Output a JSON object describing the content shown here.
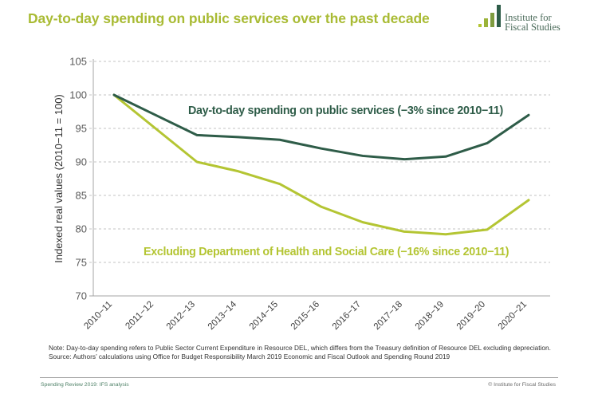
{
  "header": {
    "title": "Day-to-day spending on public services over the past decade",
    "logo_line1": "Institute for",
    "logo_line2": "Fiscal Studies"
  },
  "colors": {
    "title": "#a9bb34",
    "series_total": "#2e5c48",
    "series_excl": "#b4c533",
    "grid": "#b0b0b0",
    "axis": "#a6a6a6",
    "tick_text": "#595959",
    "logo_bars": [
      "#b4c533",
      "#9bb33a",
      "#7e9b3e",
      "#2e5c48"
    ]
  },
  "chart_data": {
    "type": "line",
    "title": "Day-to-day spending on public services over the past decade",
    "xlabel": "",
    "ylabel": "Indexed real values (2010−11 = 100)",
    "ylim": [
      70,
      105
    ],
    "yticks": [
      70,
      75,
      80,
      85,
      90,
      95,
      100,
      105
    ],
    "grid": true,
    "categories": [
      "2010−11",
      "2011−12",
      "2012−13",
      "2013−14",
      "2014−15",
      "2015−16",
      "2016−17",
      "2017−18",
      "2018−19",
      "2019−20",
      "2020−21"
    ],
    "series": [
      {
        "name": "Day-to-day spending on public services (−3% since 2010−11)",
        "key": "total",
        "values": [
          100,
          97.0,
          94.0,
          93.7,
          93.3,
          92.0,
          90.9,
          90.4,
          90.8,
          92.8,
          97.0
        ]
      },
      {
        "name": "Excluding Department of Health and Social Care (−16% since 2010−11)",
        "key": "excl",
        "values": [
          100,
          95.0,
          90.0,
          88.6,
          86.7,
          83.3,
          81.0,
          79.6,
          79.2,
          79.9,
          84.3
        ]
      }
    ],
    "annotations": [
      "Day-to-day spending on public services (−3% since 2010−11)",
      "Excluding Department of Health and Social Care (−16% since 2010−11)"
    ],
    "legend": "inline-labels"
  },
  "notes": {
    "note": "Note: Day-to-day spending refers to Public Sector Current Expenditure in Resource DEL, which differs from the Treasury definition of Resource DEL excluding depreciation.",
    "source": "Source: Authors’ calculations using Office for Budget Responsibility March 2019 Economic and Fiscal Outlook and Spending Round 2019"
  },
  "footer": {
    "left": "Spending Review 2019: IFS analysis",
    "right": "© Institute for Fiscal Studies"
  }
}
